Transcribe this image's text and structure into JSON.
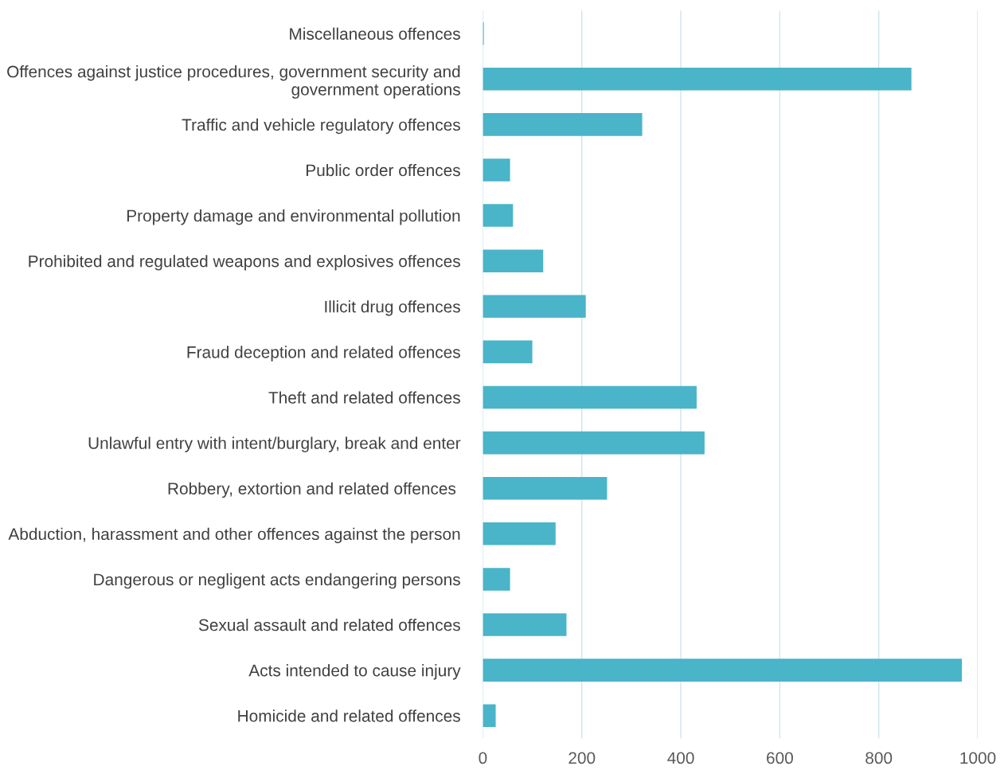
{
  "chart_data": {
    "type": "bar",
    "orientation": "horizontal",
    "categories": [
      "Miscellaneous offences",
      "Offences against justice procedures, government security and\ngovernment operations",
      "Traffic and vehicle regulatory offences",
      "Public order offences",
      "Property damage and environmental pollution",
      "Prohibited and regulated weapons and explosives offences",
      "Illicit drug offences",
      "Fraud deception and related offences",
      "Theft and related offences",
      "Unlawful entry with intent/burglary, break and enter",
      "Robbery, extortion and related offences ",
      "Abduction, harassment and other offences against the person",
      "Dangerous or negligent acts endangering persons",
      "Sexual assault and related offences",
      "Acts intended to cause injury",
      "Homicide and related offences"
    ],
    "values": [
      2,
      866,
      322,
      55,
      61,
      122,
      208,
      100,
      432,
      448,
      251,
      147,
      55,
      169,
      968,
      26
    ],
    "color": "#4ab4c9",
    "xlim": [
      0,
      1000
    ],
    "xticks": [
      0,
      200,
      400,
      600,
      800,
      1000
    ],
    "grid": "x",
    "legend": false
  }
}
